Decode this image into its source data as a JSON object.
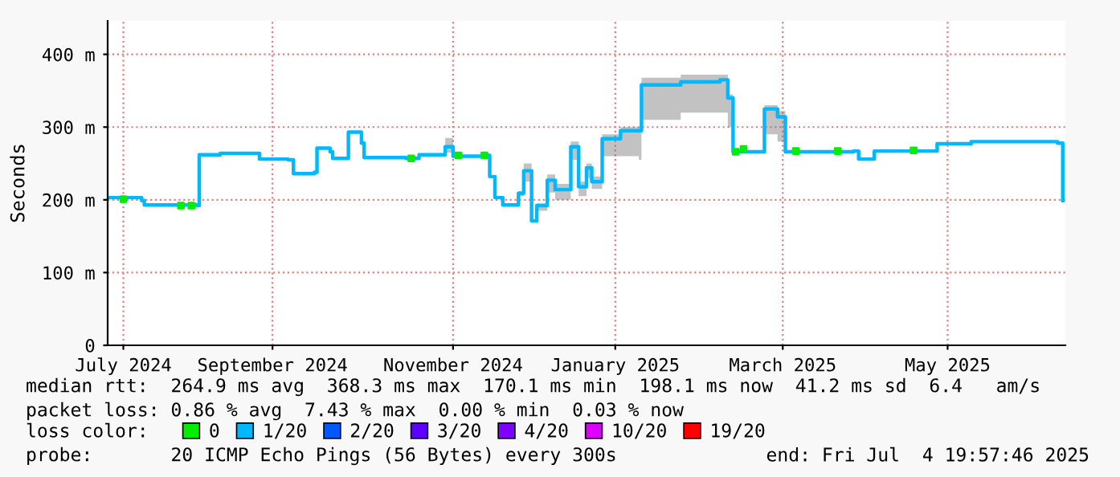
{
  "chart_data": {
    "type": "step",
    "ylabel": "Seconds",
    "legend_title": "loss color:",
    "legend": "bottom",
    "grid": true,
    "xlim": [
      "2024-07-04",
      "2025-07-05"
    ],
    "xticks": [
      {
        "value": "2024-07-10",
        "label": "July 2024"
      },
      {
        "value": "2024-09-05",
        "label": "September 2024"
      },
      {
        "value": "2024-11-13",
        "label": "November 2024"
      },
      {
        "value": "2025-01-14",
        "label": "January 2025"
      },
      {
        "value": "2025-03-19",
        "label": "March 2025"
      },
      {
        "value": "2025-05-21",
        "label": "May 2025"
      }
    ],
    "ylim": [
      0,
      446
    ],
    "yticks": [
      0,
      {
        "value": 100,
        "label": "100 m"
      },
      {
        "value": 200,
        "label": "200 m"
      },
      {
        "value": 300,
        "label": "300 m"
      },
      {
        "value": 400,
        "label": "400 m"
      }
    ],
    "series": [
      {
        "color": "#00b8ff",
        "x": [
          "2024-07-04",
          "2024-07-17",
          "2024-07-18",
          "2024-08-07",
          "2024-08-08",
          "2024-08-16",
          "2024-08-28",
          "2024-08-31",
          "2024-09-11",
          "2024-09-13",
          "2024-09-21",
          "2024-09-22",
          "2024-09-27",
          "2024-09-28",
          "2024-10-04",
          "2024-10-09",
          "2024-10-10",
          "2024-10-26",
          "2024-10-31",
          "2024-11-10",
          "2024-11-13",
          "2024-11-26",
          "2024-11-27",
          "2024-11-29",
          "2024-12-02",
          "2024-12-08",
          "2024-12-10",
          "2024-12-13",
          "2024-12-15",
          "2024-12-19",
          "2024-12-22",
          "2024-12-28",
          "2024-12-31",
          "2025-01-03",
          "2025-01-05",
          "2025-01-09",
          "2025-01-16",
          "2025-01-23",
          "2025-01-24",
          "2025-02-08",
          "2025-02-23",
          "2025-02-26",
          "2025-02-28",
          "2025-03-06",
          "2025-03-12",
          "2025-03-17",
          "2025-03-20",
          "2025-04-15",
          "2025-04-17",
          "2025-04-23",
          "2025-05-11",
          "2025-05-17",
          "2025-05-30",
          "2025-06-21",
          "2025-07-02",
          "2025-07-04"
        ],
        "values": [
          203,
          199,
          193,
          192,
          262,
          264,
          264,
          256,
          255,
          236,
          238,
          271,
          266,
          257,
          293,
          278,
          258,
          257,
          262,
          273,
          260,
          261,
          232,
          203,
          193,
          209,
          240,
          171,
          192,
          227,
          214,
          273,
          218,
          244,
          225,
          284,
          295,
          295,
          358,
          362,
          365,
          340,
          266,
          266,
          325,
          314,
          266,
          267,
          256,
          267,
          267,
          277,
          280,
          280,
          278,
          199
        ],
        "lower": [
          203,
          199,
          193,
          192,
          262,
          264,
          264,
          256,
          255,
          236,
          238,
          271,
          266,
          257,
          293,
          278,
          258,
          257,
          262,
          265,
          260,
          261,
          232,
          203,
          193,
          205,
          225,
          171,
          185,
          210,
          200,
          255,
          205,
          230,
          215,
          260,
          260,
          255,
          310,
          320,
          320,
          300,
          266,
          266,
          290,
          280,
          266,
          267,
          256,
          267,
          267,
          277,
          280,
          280,
          278,
          199
        ],
        "upper": [
          203,
          199,
          193,
          192,
          262,
          264,
          264,
          256,
          255,
          236,
          238,
          271,
          266,
          257,
          293,
          278,
          258,
          257,
          262,
          285,
          260,
          261,
          232,
          203,
          193,
          212,
          250,
          171,
          195,
          235,
          222,
          280,
          225,
          250,
          232,
          290,
          300,
          300,
          368,
          372,
          372,
          345,
          266,
          266,
          330,
          322,
          266,
          267,
          256,
          267,
          267,
          277,
          280,
          280,
          278,
          199
        ]
      },
      {
        "type": "scatter",
        "name": "0",
        "color": "#00ee00",
        "x": [
          "2024-07-10",
          "2024-08-01",
          "2024-08-05",
          "2024-10-28",
          "2024-11-15",
          "2024-11-25",
          "2025-03-01",
          "2025-03-04",
          "2025-03-24",
          "2025-04-09",
          "2025-05-08"
        ],
        "values": [
          201,
          192,
          192,
          257,
          261,
          261,
          266,
          270,
          267,
          267,
          268
        ]
      },
      {
        "name": "1/20",
        "color": "#00b8ff"
      },
      {
        "name": "2/20",
        "color": "#0059ff"
      },
      {
        "name": "3/20",
        "color": "#5e00ff"
      },
      {
        "name": "4/20",
        "color": "#7e00ff"
      },
      {
        "name": "10/20",
        "color": "#dd00ff"
      },
      {
        "name": "19/20",
        "color": "#ff0000"
      }
    ],
    "annotations": [
      "median rtt:  264.9 ms avg  368.3 ms max  170.1 ms min  198.1 ms now  41.2 ms sd  6.4   am/s",
      "packet loss: 0.86 % avg  7.43 % max  0.00 % min  0.03 % now",
      "probe:       20 ICMP Echo Pings (56 Bytes) every 300s",
      "end: Fri Jul  4 19:57:46 2025"
    ]
  }
}
